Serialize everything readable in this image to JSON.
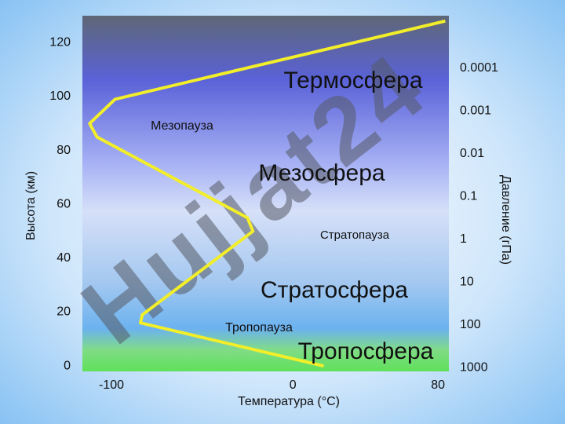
{
  "chart_data": {
    "type": "line",
    "xlabel": "Температура (°C)",
    "ylabel": "Высота (км)",
    "y2label": "Давление (гПа)",
    "x": [
      17,
      -84,
      -83,
      -22,
      -25,
      -108,
      -112,
      -98,
      84
    ],
    "series": [
      {
        "color": "#f2ee2a",
        "values": [
          0,
          16,
          19,
          50,
          55,
          85,
          90,
          99,
          128
        ]
      }
    ],
    "xlim": [
      -116,
      86
    ],
    "xticks": [
      -100,
      0,
      80
    ],
    "ylim": [
      -2,
      130
    ],
    "yticks": [
      0,
      20,
      40,
      60,
      80,
      100,
      120
    ],
    "y2lim": [
      1230,
      6e-06
    ],
    "y2log": true,
    "y2ticks": [
      0.0001,
      0.001,
      0.01,
      0.1,
      1,
      10,
      100,
      1000
    ],
    "annotations": [
      "Термосфера",
      "Мезопауза",
      "Мезосфера",
      "Стратопауза",
      "Стратосфера",
      "Тропопауза",
      "Тропосфера"
    ],
    "watermark": "Hujjat24"
  }
}
